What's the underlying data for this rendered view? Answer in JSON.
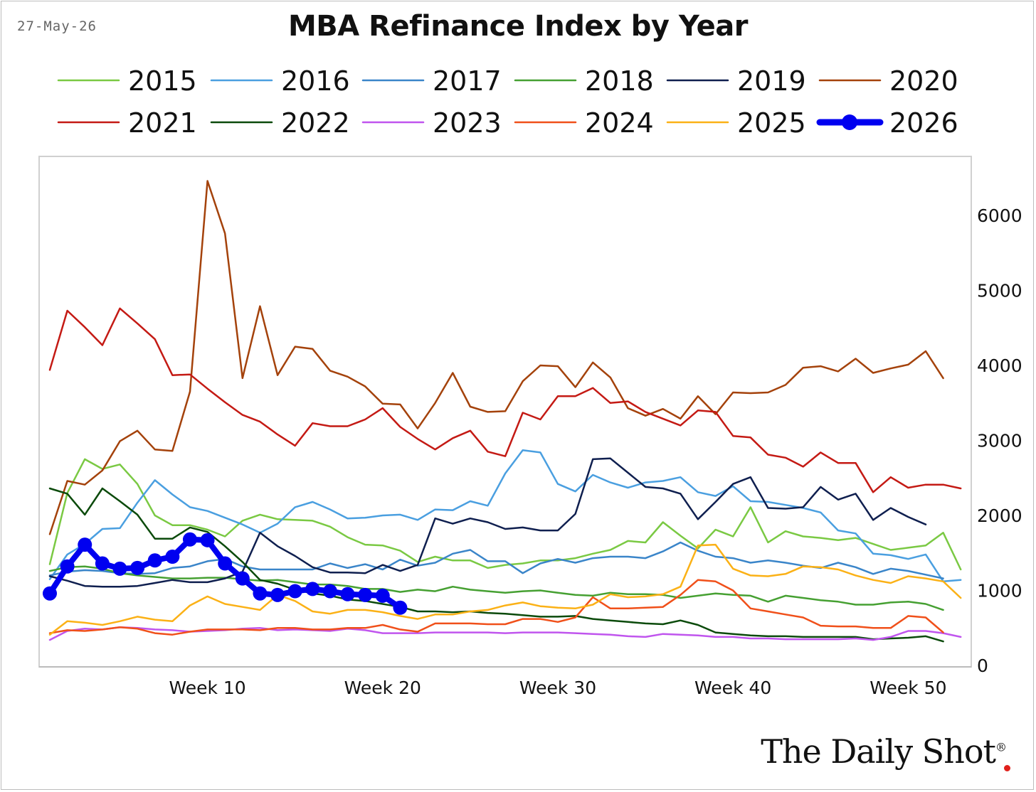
{
  "header": {
    "date": "27-May-26",
    "title": "MBA Refinance Index by Year"
  },
  "brand": {
    "name": "The Daily Shot",
    "mark": "®"
  },
  "chart_data": {
    "type": "line",
    "title": "MBA Refinance Index by Year",
    "xlabel": "",
    "ylabel": "",
    "x_ticks": [
      {
        "week": 10,
        "label": "Week 10"
      },
      {
        "week": 20,
        "label": "Week 20"
      },
      {
        "week": 30,
        "label": "Week 30"
      },
      {
        "week": 40,
        "label": "Week 40"
      },
      {
        "week": 50,
        "label": "Week 50"
      }
    ],
    "y_ticks": [
      0,
      1000,
      2000,
      3000,
      4000,
      5000,
      6000
    ],
    "xlim": [
      0.5,
      53.5
    ],
    "ylim": [
      0,
      6600
    ],
    "y_axis_side": "right",
    "grid": false,
    "legend_position": "top",
    "series": [
      {
        "name": "2015",
        "color": "#7ac943",
        "width": 2.5,
        "marker": false,
        "start_week": 1,
        "values": [
          1350,
          2300,
          2750,
          2620,
          2680,
          2420,
          2000,
          1870,
          1870,
          1810,
          1720,
          1930,
          2010,
          1950,
          1940,
          1930,
          1850,
          1710,
          1610,
          1600,
          1530,
          1380,
          1450,
          1400,
          1400,
          1300,
          1340,
          1360,
          1400,
          1400,
          1430,
          1490,
          1540,
          1660,
          1640,
          1910,
          1730,
          1560,
          1810,
          1720,
          2110,
          1640,
          1790,
          1720,
          1700,
          1670,
          1700,
          1620,
          1540,
          1570,
          1600,
          1770,
          1280
        ]
      },
      {
        "name": "2016",
        "color": "#4a9fe0",
        "width": 2.5,
        "marker": false,
        "start_week": 1,
        "values": [
          1150,
          1480,
          1620,
          1820,
          1830,
          2170,
          2470,
          2280,
          2110,
          2060,
          1970,
          1880,
          1770,
          1890,
          2110,
          2180,
          2080,
          1960,
          1970,
          2000,
          2010,
          1940,
          2080,
          2070,
          2190,
          2130,
          2560,
          2870,
          2840,
          2420,
          2320,
          2540,
          2440,
          2370,
          2440,
          2460,
          2510,
          2310,
          2260,
          2390,
          2190,
          2180,
          2140,
          2100,
          2040,
          1800,
          1760,
          1490,
          1470,
          1420,
          1480,
          1120,
          1140
        ]
      },
      {
        "name": "2017",
        "color": "#3a85c9",
        "width": 2.5,
        "marker": false,
        "start_week": 1,
        "values": [
          1200,
          1250,
          1270,
          1260,
          1230,
          1220,
          1230,
          1300,
          1320,
          1390,
          1420,
          1320,
          1280,
          1280,
          1280,
          1280,
          1360,
          1300,
          1350,
          1280,
          1410,
          1330,
          1370,
          1490,
          1540,
          1390,
          1390,
          1230,
          1360,
          1420,
          1370,
          1430,
          1450,
          1450,
          1430,
          1520,
          1640,
          1530,
          1450,
          1430,
          1370,
          1400,
          1370,
          1330,
          1300,
          1370,
          1310,
          1220,
          1290,
          1260,
          1210,
          1160,
          null
        ]
      },
      {
        "name": "2018",
        "color": "#46a032",
        "width": 2.5,
        "marker": false,
        "start_week": 1,
        "values": [
          1260,
          1310,
          1320,
          1290,
          1230,
          1200,
          1180,
          1160,
          1160,
          1170,
          1170,
          1150,
          1130,
          1140,
          1110,
          1080,
          1080,
          1060,
          1020,
          1020,
          980,
          1010,
          990,
          1050,
          1010,
          990,
          970,
          990,
          1000,
          970,
          940,
          930,
          970,
          950,
          950,
          940,
          900,
          930,
          960,
          940,
          930,
          850,
          930,
          900,
          870,
          850,
          810,
          810,
          840,
          850,
          820,
          740,
          null
        ]
      },
      {
        "name": "2019",
        "color": "#0f1f4f",
        "width": 2.5,
        "marker": false,
        "start_week": 1,
        "values": [
          1190,
          1130,
          1060,
          1050,
          1050,
          1060,
          1100,
          1140,
          1110,
          1110,
          1160,
          1250,
          1770,
          1590,
          1460,
          1310,
          1240,
          1240,
          1230,
          1340,
          1260,
          1340,
          1960,
          1890,
          1960,
          1910,
          1820,
          1840,
          1800,
          1800,
          2020,
          2750,
          2760,
          2570,
          2380,
          2360,
          2290,
          1950,
          2180,
          2420,
          2510,
          2100,
          2090,
          2110,
          2380,
          2210,
          2290,
          1940,
          2100,
          1980,
          1880,
          null,
          null
        ]
      },
      {
        "name": "2020",
        "color": "#a4420b",
        "width": 2.5,
        "marker": false,
        "start_week": 1,
        "values": [
          1750,
          2460,
          2410,
          2600,
          2990,
          3130,
          2880,
          2860,
          3650,
          6460,
          5760,
          3830,
          4790,
          3870,
          4250,
          4220,
          3930,
          3850,
          3720,
          3490,
          3480,
          3160,
          3500,
          3900,
          3450,
          3380,
          3390,
          3790,
          4000,
          3990,
          3710,
          4040,
          3840,
          3430,
          3330,
          3420,
          3290,
          3590,
          3350,
          3640,
          3630,
          3640,
          3740,
          3970,
          3990,
          3920,
          4090,
          3900,
          3960,
          4010,
          4190,
          3830,
          null
        ]
      },
      {
        "name": "2021",
        "color": "#c41a14",
        "width": 2.5,
        "marker": false,
        "start_week": 1,
        "values": [
          3940,
          4730,
          4510,
          4270,
          4760,
          4560,
          4350,
          3870,
          3880,
          3690,
          3510,
          3340,
          3250,
          3080,
          2930,
          3230,
          3190,
          3190,
          3280,
          3430,
          3180,
          3020,
          2880,
          3030,
          3130,
          2850,
          2790,
          3370,
          3280,
          3590,
          3590,
          3700,
          3500,
          3520,
          3380,
          3290,
          3200,
          3400,
          3380,
          3060,
          3040,
          2810,
          2770,
          2650,
          2840,
          2700,
          2700,
          2310,
          2510,
          2370,
          2410,
          2410,
          2360
        ]
      },
      {
        "name": "2022",
        "color": "#0b4a0b",
        "width": 2.5,
        "marker": false,
        "start_week": 1,
        "values": [
          2360,
          2290,
          2010,
          2360,
          2190,
          2010,
          1690,
          1690,
          1840,
          1780,
          1590,
          1380,
          1140,
          1090,
          1010,
          960,
          930,
          880,
          860,
          820,
          780,
          720,
          720,
          710,
          720,
          700,
          690,
          670,
          650,
          650,
          660,
          620,
          600,
          580,
          560,
          550,
          600,
          540,
          440,
          420,
          400,
          390,
          390,
          380,
          380,
          380,
          380,
          350,
          360,
          370,
          390,
          320,
          null
        ]
      },
      {
        "name": "2023",
        "color": "#c055ee",
        "width": 2.5,
        "marker": false,
        "start_week": 1,
        "values": [
          340,
          460,
          490,
          480,
          510,
          500,
          480,
          470,
          450,
          460,
          470,
          490,
          500,
          470,
          480,
          470,
          460,
          490,
          470,
          430,
          430,
          430,
          440,
          440,
          440,
          440,
          430,
          440,
          440,
          440,
          430,
          420,
          410,
          390,
          380,
          420,
          410,
          400,
          380,
          380,
          360,
          360,
          350,
          350,
          350,
          350,
          360,
          340,
          380,
          460,
          460,
          430,
          380
        ]
      },
      {
        "name": "2024",
        "color": "#f0501a",
        "width": 2.5,
        "marker": false,
        "start_week": 1,
        "values": [
          430,
          470,
          460,
          480,
          510,
          490,
          430,
          410,
          450,
          480,
          480,
          480,
          470,
          500,
          500,
          480,
          480,
          500,
          500,
          540,
          480,
          450,
          560,
          560,
          560,
          550,
          550,
          620,
          620,
          580,
          640,
          910,
          760,
          760,
          770,
          780,
          940,
          1140,
          1120,
          1000,
          760,
          720,
          680,
          640,
          530,
          520,
          520,
          500,
          500,
          660,
          640,
          440,
          null
        ]
      },
      {
        "name": "2025",
        "color": "#fbb116",
        "width": 2.5,
        "marker": false,
        "start_week": 1,
        "values": [
          410,
          590,
          570,
          540,
          590,
          650,
          610,
          590,
          800,
          920,
          820,
          780,
          740,
          940,
          860,
          720,
          690,
          740,
          740,
          710,
          660,
          620,
          680,
          680,
          720,
          740,
          800,
          840,
          790,
          770,
          760,
          810,
          950,
          910,
          920,
          950,
          1050,
          1600,
          1610,
          1290,
          1200,
          1190,
          1220,
          1320,
          1310,
          1280,
          1200,
          1140,
          1100,
          1190,
          1160,
          1120,
          900
        ]
      },
      {
        "name": "2026",
        "color": "#0000f0",
        "width": 8,
        "marker": true,
        "start_week": 1,
        "values": [
          960,
          1320,
          1610,
          1360,
          1290,
          1300,
          1400,
          1450,
          1680,
          1670,
          1360,
          1160,
          960,
          940,
          990,
          1020,
          990,
          950,
          940,
          930,
          770
        ]
      }
    ]
  }
}
